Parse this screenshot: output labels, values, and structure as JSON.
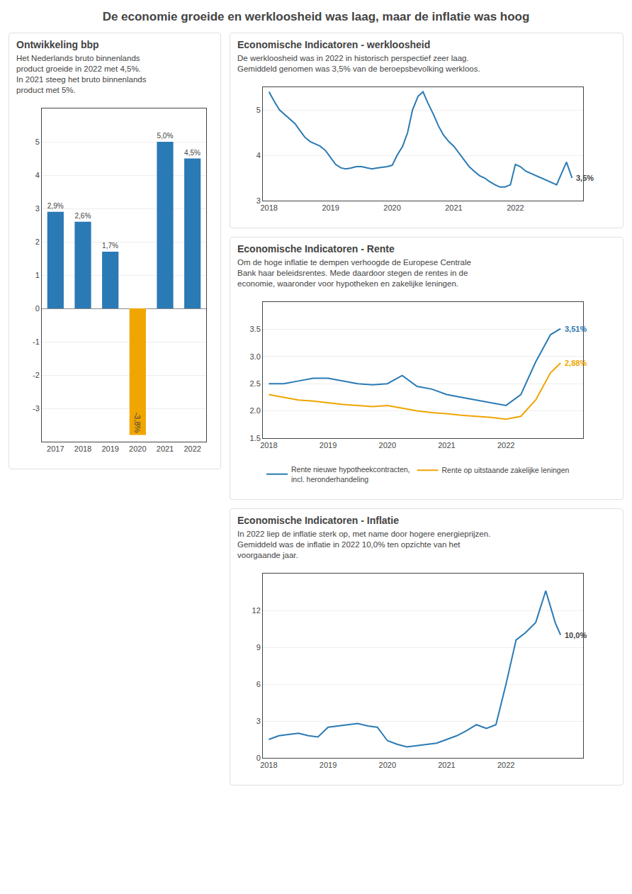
{
  "title": "De economie groeide en werkloosheid was laag, maar de inflatie was hoog",
  "chart_data": [
    {
      "type": "bar",
      "title": "Ontwikkeling bbp",
      "subtitle": "Het Nederlands bruto binnenlands\nproduct groeide in 2022 met 4,5%.\nIn 2021 steeg het bruto binnenlands\nproduct met 5%.",
      "categories": [
        "2017",
        "2018",
        "2019",
        "2020",
        "2021",
        "2022"
      ],
      "values": [
        2.9,
        2.6,
        1.7,
        -3.8,
        5.0,
        4.5
      ],
      "value_labels": [
        "2,9%",
        "2,6%",
        "1,7%",
        "-3,8%",
        "5,0%",
        "4,5%"
      ],
      "colors": [
        "#2a7ab5",
        "#2a7ab5",
        "#2a7ab5",
        "#f0a500",
        "#2a7ab5",
        "#2a7ab5"
      ],
      "ylim": [
        -4,
        6
      ],
      "yticks": [
        -3,
        -2,
        -1,
        0,
        1,
        2,
        3,
        4,
        5
      ],
      "grid": true,
      "data_labels": true
    },
    {
      "type": "line",
      "title": "Economische Indicatoren - werkloosheid",
      "subtitle": "De werkloosheid was in 2022 in historisch perspectief zeer laag.\nGemiddeld genomen was 3,5% van de beroepsbevolking werkloos.",
      "x": [
        2018.0,
        2018.08,
        2018.17,
        2018.25,
        2018.33,
        2018.42,
        2018.5,
        2018.58,
        2018.67,
        2018.75,
        2018.83,
        2018.92,
        2019.0,
        2019.08,
        2019.17,
        2019.25,
        2019.33,
        2019.42,
        2019.5,
        2019.58,
        2019.67,
        2019.75,
        2019.83,
        2019.92,
        2020.0,
        2020.08,
        2020.17,
        2020.25,
        2020.33,
        2020.42,
        2020.5,
        2020.58,
        2020.67,
        2020.75,
        2020.83,
        2020.92,
        2021.0,
        2021.08,
        2021.17,
        2021.25,
        2021.33,
        2021.42,
        2021.5,
        2021.58,
        2021.67,
        2021.75,
        2021.83,
        2021.92,
        2022.0,
        2022.08,
        2022.17,
        2022.25,
        2022.33,
        2022.42,
        2022.5,
        2022.58,
        2022.67,
        2022.75,
        2022.83,
        2022.92
      ],
      "series": [
        {
          "color": "#2a7ab5",
          "values": [
            5.4,
            5.2,
            5.0,
            4.9,
            4.8,
            4.7,
            4.55,
            4.4,
            4.3,
            4.25,
            4.2,
            4.1,
            3.95,
            3.8,
            3.72,
            3.7,
            3.72,
            3.75,
            3.75,
            3.73,
            3.7,
            3.72,
            3.73,
            3.75,
            3.78,
            4.0,
            4.2,
            4.5,
            5.0,
            5.3,
            5.4,
            5.15,
            4.9,
            4.65,
            4.45,
            4.3,
            4.2,
            4.05,
            3.9,
            3.75,
            3.65,
            3.55,
            3.5,
            3.42,
            3.35,
            3.3,
            3.3,
            3.35,
            3.8,
            3.75,
            3.65,
            3.6,
            3.55,
            3.5,
            3.45,
            3.4,
            3.35,
            3.6,
            3.85,
            3.5
          ]
        }
      ],
      "xlim": [
        2017.9,
        2023.1
      ],
      "xticks": [
        2018,
        2019,
        2020,
        2021,
        2022
      ],
      "ylim": [
        3,
        5.5
      ],
      "yticks": [
        3,
        4,
        5
      ],
      "grid": true,
      "annotations": [
        {
          "x": 2022.92,
          "y": 3.5,
          "text": "3,5%"
        }
      ]
    },
    {
      "type": "line",
      "title": "Economische Indicatoren - Rente",
      "subtitle": "Om de hoge inflatie te dempen verhoogde de Europese Centrale\nBank haar beleidsrentes. Mede daardoor stegen de rentes in de\neconomie, waaronder voor hypotheken en zakelijke leningen.",
      "x": [
        2018.0,
        2018.25,
        2018.5,
        2018.75,
        2019.0,
        2019.25,
        2019.5,
        2019.75,
        2020.0,
        2020.25,
        2020.5,
        2020.75,
        2021.0,
        2021.25,
        2021.5,
        2021.75,
        2022.0,
        2022.25,
        2022.5,
        2022.75,
        2022.92
      ],
      "series": [
        {
          "name": "Rente nieuwe hypotheekcontracten,\nincl. heronderhandeling",
          "color": "#2a7ab5",
          "values": [
            2.5,
            2.5,
            2.55,
            2.6,
            2.6,
            2.55,
            2.5,
            2.48,
            2.5,
            2.65,
            2.45,
            2.4,
            2.3,
            2.25,
            2.2,
            2.15,
            2.1,
            2.3,
            2.9,
            3.4,
            3.51
          ]
        },
        {
          "name": "Rente op uitstaande zakelijke leningen",
          "color": "#f0a500",
          "values": [
            2.3,
            2.25,
            2.2,
            2.18,
            2.15,
            2.12,
            2.1,
            2.08,
            2.1,
            2.05,
            2.0,
            1.97,
            1.95,
            1.92,
            1.9,
            1.88,
            1.85,
            1.9,
            2.2,
            2.7,
            2.88
          ]
        }
      ],
      "xlim": [
        2017.9,
        2023.3
      ],
      "xticks": [
        2018,
        2019,
        2020,
        2021,
        2022
      ],
      "ylim": [
        1.5,
        4.0
      ],
      "yticks": [
        1.5,
        {
          "value": 2,
          "label": "2.0"
        },
        2.5,
        {
          "value": 3,
          "label": "3.0"
        },
        3.5
      ],
      "grid": true,
      "legend": "bottom",
      "annotations": [
        {
          "x": 2022.92,
          "y": 3.51,
          "text": "3,51%",
          "color": "#2a7ab5"
        },
        {
          "x": 2022.92,
          "y": 2.88,
          "text": "2,88%",
          "color": "#f0a500"
        }
      ]
    },
    {
      "type": "line",
      "title": "Economische Indicatoren - Inflatie",
      "subtitle": "In 2022 liep de inflatie sterk op, met name door hogere energieprijzen.\nGemiddeld was de inflatie in 2022 10,0% ten opzichte van het\nvoorgaande jaar.",
      "x": [
        2018.0,
        2018.17,
        2018.33,
        2018.5,
        2018.67,
        2018.83,
        2019.0,
        2019.17,
        2019.33,
        2019.5,
        2019.67,
        2019.83,
        2020.0,
        2020.17,
        2020.33,
        2020.5,
        2020.67,
        2020.83,
        2021.0,
        2021.17,
        2021.33,
        2021.5,
        2021.67,
        2021.83,
        2022.0,
        2022.17,
        2022.33,
        2022.5,
        2022.67,
        2022.83,
        2022.92
      ],
      "series": [
        {
          "color": "#2a7ab5",
          "values": [
            1.5,
            1.8,
            1.9,
            2.0,
            1.8,
            1.7,
            2.5,
            2.6,
            2.7,
            2.8,
            2.6,
            2.5,
            1.4,
            1.1,
            0.9,
            1.0,
            1.1,
            1.2,
            1.5,
            1.8,
            2.2,
            2.7,
            2.4,
            2.7,
            6.0,
            9.6,
            10.2,
            11.0,
            13.6,
            11.0,
            10.0
          ]
        }
      ],
      "xlim": [
        2017.9,
        2023.3
      ],
      "xticks": [
        2018,
        2019,
        2020,
        2021,
        2022
      ],
      "ylim": [
        0,
        15
      ],
      "yticks": [
        0,
        3,
        6,
        9,
        12
      ],
      "grid": true,
      "annotations": [
        {
          "x": 2022.92,
          "y": 10.0,
          "text": "10,0%"
        }
      ]
    }
  ]
}
